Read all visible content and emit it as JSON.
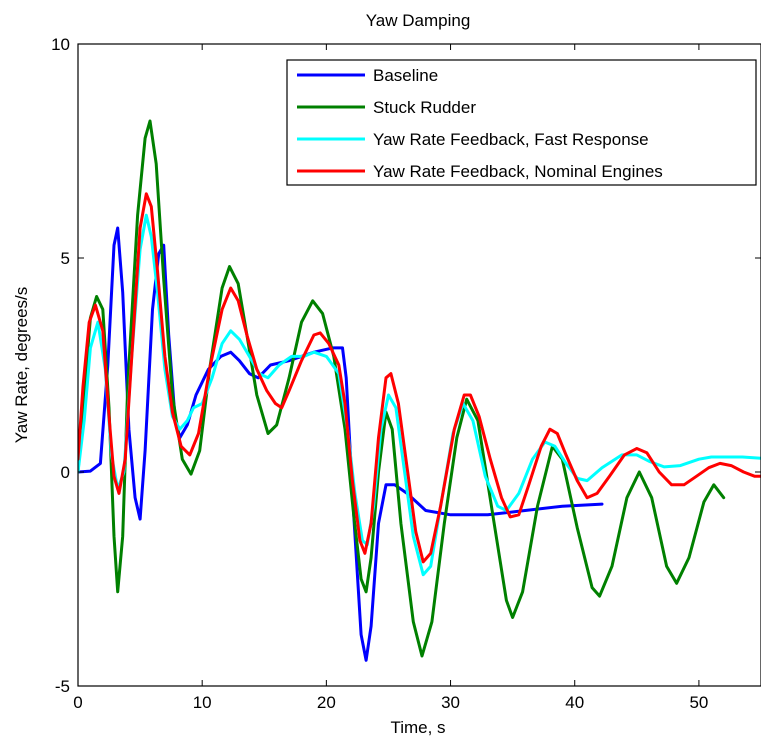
{
  "chart_data": {
    "type": "line",
    "title": "Yaw Damping",
    "xlabel": "Time, s",
    "ylabel": "Yaw Rate, degrees/s",
    "xlim": [
      0,
      55
    ],
    "ylim": [
      -5,
      10
    ],
    "xticks": [
      0,
      10,
      20,
      30,
      40,
      50
    ],
    "yticks": [
      -5,
      0,
      5,
      10
    ],
    "grid": false,
    "legend_position": "top-right",
    "series": [
      {
        "name": "Baseline",
        "color": "#0000ff",
        "points": [
          [
            0,
            0
          ],
          [
            1,
            0.02
          ],
          [
            1.8,
            0.2
          ],
          [
            2.4,
            2.5
          ],
          [
            2.9,
            5.3
          ],
          [
            3.2,
            5.7
          ],
          [
            3.6,
            4.2
          ],
          [
            4.1,
            1.0
          ],
          [
            4.6,
            -0.6
          ],
          [
            5.0,
            -1.1
          ],
          [
            5.4,
            0.5
          ],
          [
            6.0,
            3.8
          ],
          [
            6.5,
            5.1
          ],
          [
            6.9,
            5.3
          ],
          [
            7.3,
            3.2
          ],
          [
            7.8,
            1.3
          ],
          [
            8.2,
            0.8
          ],
          [
            8.8,
            1.1
          ],
          [
            9.5,
            1.8
          ],
          [
            10.5,
            2.4
          ],
          [
            11.5,
            2.7
          ],
          [
            12.3,
            2.8
          ],
          [
            13.0,
            2.6
          ],
          [
            13.8,
            2.3
          ],
          [
            14.5,
            2.2
          ],
          [
            15.5,
            2.5
          ],
          [
            17,
            2.6
          ],
          [
            19,
            2.8
          ],
          [
            20.5,
            2.9
          ],
          [
            21.3,
            2.9
          ],
          [
            21.6,
            2.2
          ],
          [
            22.2,
            -1.0
          ],
          [
            22.8,
            -3.8
          ],
          [
            23.2,
            -4.4
          ],
          [
            23.6,
            -3.6
          ],
          [
            24.2,
            -1.2
          ],
          [
            24.8,
            -0.3
          ],
          [
            25.5,
            -0.3
          ],
          [
            26.5,
            -0.5
          ],
          [
            28,
            -0.9
          ],
          [
            30,
            -1.0
          ],
          [
            33,
            -1.0
          ],
          [
            36,
            -0.9
          ],
          [
            39,
            -0.8
          ],
          [
            42.2,
            -0.75
          ]
        ]
      },
      {
        "name": "Stuck Rudder",
        "color": "#008000",
        "points": [
          [
            0,
            0
          ],
          [
            0.4,
            1.5
          ],
          [
            1.0,
            3.6
          ],
          [
            1.5,
            4.1
          ],
          [
            2.0,
            3.8
          ],
          [
            2.5,
            1.5
          ],
          [
            2.9,
            -1.5
          ],
          [
            3.2,
            -2.8
          ],
          [
            3.6,
            -1.5
          ],
          [
            4.0,
            2.0
          ],
          [
            4.8,
            6.0
          ],
          [
            5.4,
            7.8
          ],
          [
            5.8,
            8.2
          ],
          [
            6.3,
            7.2
          ],
          [
            6.9,
            4.5
          ],
          [
            7.6,
            1.8
          ],
          [
            8.4,
            0.3
          ],
          [
            9.1,
            -0.05
          ],
          [
            9.8,
            0.5
          ],
          [
            10.6,
            2.4
          ],
          [
            11.6,
            4.3
          ],
          [
            12.2,
            4.8
          ],
          [
            12.9,
            4.4
          ],
          [
            13.6,
            3.2
          ],
          [
            14.4,
            1.8
          ],
          [
            15.3,
            0.9
          ],
          [
            16.0,
            1.1
          ],
          [
            17.0,
            2.2
          ],
          [
            18.0,
            3.5
          ],
          [
            18.9,
            4.0
          ],
          [
            19.7,
            3.7
          ],
          [
            20.6,
            2.7
          ],
          [
            21.5,
            1.0
          ],
          [
            22.2,
            -1.0
          ],
          [
            22.8,
            -2.5
          ],
          [
            23.2,
            -2.8
          ],
          [
            23.6,
            -2.0
          ],
          [
            24.2,
            0.0
          ],
          [
            24.8,
            1.4
          ],
          [
            25.3,
            1.0
          ],
          [
            26.0,
            -1.2
          ],
          [
            27.0,
            -3.5
          ],
          [
            27.7,
            -4.3
          ],
          [
            28.5,
            -3.5
          ],
          [
            29.5,
            -1.2
          ],
          [
            30.5,
            0.8
          ],
          [
            31.3,
            1.7
          ],
          [
            32.2,
            1.2
          ],
          [
            33.4,
            -1.0
          ],
          [
            34.5,
            -3.0
          ],
          [
            35.0,
            -3.4
          ],
          [
            35.8,
            -2.8
          ],
          [
            37.0,
            -0.8
          ],
          [
            38.2,
            0.6
          ],
          [
            39.0,
            0.3
          ],
          [
            40.2,
            -1.3
          ],
          [
            41.4,
            -2.7
          ],
          [
            42.0,
            -2.9
          ],
          [
            43.0,
            -2.2
          ],
          [
            44.2,
            -0.6
          ],
          [
            45.2,
            0.0
          ],
          [
            46.2,
            -0.6
          ],
          [
            47.4,
            -2.2
          ],
          [
            48.2,
            -2.6
          ],
          [
            49.2,
            -2.0
          ],
          [
            50.4,
            -0.7
          ],
          [
            51.2,
            -0.3
          ],
          [
            52.0,
            -0.6
          ]
        ]
      },
      {
        "name": "Yaw Rate Feedback, Fast Response",
        "color": "#00ffff",
        "points": [
          [
            0,
            0
          ],
          [
            0.5,
            1.2
          ],
          [
            1.0,
            2.9
          ],
          [
            1.6,
            3.5
          ],
          [
            2.2,
            2.4
          ],
          [
            2.7,
            0.4
          ],
          [
            3.2,
            -0.4
          ],
          [
            3.7,
            0.0
          ],
          [
            4.3,
            2.6
          ],
          [
            5.0,
            5.2
          ],
          [
            5.5,
            6.0
          ],
          [
            5.9,
            5.5
          ],
          [
            6.4,
            4.2
          ],
          [
            7.0,
            2.4
          ],
          [
            7.6,
            1.3
          ],
          [
            8.2,
            1.0
          ],
          [
            8.8,
            1.2
          ],
          [
            9.3,
            1.5
          ],
          [
            10.0,
            1.6
          ],
          [
            10.8,
            2.2
          ],
          [
            11.6,
            3.0
          ],
          [
            12.3,
            3.3
          ],
          [
            13.0,
            3.1
          ],
          [
            13.8,
            2.7
          ],
          [
            14.6,
            2.3
          ],
          [
            15.3,
            2.2
          ],
          [
            16.2,
            2.5
          ],
          [
            17.2,
            2.7
          ],
          [
            18.2,
            2.7
          ],
          [
            19.0,
            2.8
          ],
          [
            20.0,
            2.7
          ],
          [
            21.0,
            2.3
          ],
          [
            21.7,
            1.0
          ],
          [
            22.3,
            -0.5
          ],
          [
            22.9,
            -1.6
          ],
          [
            23.3,
            -1.7
          ],
          [
            23.8,
            -0.8
          ],
          [
            24.4,
            1.0
          ],
          [
            25.0,
            1.8
          ],
          [
            25.6,
            1.5
          ],
          [
            26.3,
            0.0
          ],
          [
            27.0,
            -1.5
          ],
          [
            27.8,
            -2.4
          ],
          [
            28.4,
            -2.2
          ],
          [
            29.2,
            -0.8
          ],
          [
            30.2,
            0.9
          ],
          [
            31.0,
            1.6
          ],
          [
            31.8,
            1.2
          ],
          [
            32.8,
            -0.1
          ],
          [
            33.8,
            -0.8
          ],
          [
            34.5,
            -0.9
          ],
          [
            35.5,
            -0.5
          ],
          [
            36.6,
            0.3
          ],
          [
            37.6,
            0.7
          ],
          [
            38.4,
            0.6
          ],
          [
            39.3,
            0.2
          ],
          [
            40.2,
            -0.15
          ],
          [
            41.0,
            -0.2
          ],
          [
            42.2,
            0.1
          ],
          [
            43.8,
            0.4
          ],
          [
            45.0,
            0.4
          ],
          [
            46.0,
            0.25
          ],
          [
            47.2,
            0.12
          ],
          [
            48.5,
            0.15
          ],
          [
            50.0,
            0.3
          ],
          [
            51.0,
            0.35
          ],
          [
            52.5,
            0.35
          ],
          [
            53.5,
            0.35
          ],
          [
            55.0,
            0.32
          ]
        ]
      },
      {
        "name": "Yaw Rate Feedback, Nominal Engines",
        "color": "#ff0000",
        "points": [
          [
            0,
            0.3
          ],
          [
            0.4,
            2.0
          ],
          [
            0.9,
            3.5
          ],
          [
            1.4,
            3.9
          ],
          [
            2.0,
            3.3
          ],
          [
            2.5,
            1.3
          ],
          [
            2.9,
            -0.1
          ],
          [
            3.3,
            -0.5
          ],
          [
            3.8,
            0.3
          ],
          [
            4.4,
            3.0
          ],
          [
            5.0,
            5.7
          ],
          [
            5.5,
            6.5
          ],
          [
            5.9,
            6.2
          ],
          [
            6.4,
            4.7
          ],
          [
            7.0,
            2.7
          ],
          [
            7.6,
            1.4
          ],
          [
            8.3,
            0.6
          ],
          [
            9.0,
            0.4
          ],
          [
            9.7,
            0.9
          ],
          [
            10.6,
            2.4
          ],
          [
            11.6,
            3.8
          ],
          [
            12.3,
            4.3
          ],
          [
            12.9,
            4.0
          ],
          [
            13.6,
            3.2
          ],
          [
            14.4,
            2.4
          ],
          [
            15.2,
            1.9
          ],
          [
            15.9,
            1.6
          ],
          [
            16.4,
            1.5
          ],
          [
            17.0,
            1.9
          ],
          [
            18.0,
            2.6
          ],
          [
            19.0,
            3.2
          ],
          [
            19.5,
            3.25
          ],
          [
            20.2,
            3.0
          ],
          [
            21.0,
            2.5
          ],
          [
            21.5,
            1.6
          ],
          [
            22.1,
            -0.2
          ],
          [
            22.7,
            -1.6
          ],
          [
            23.1,
            -1.9
          ],
          [
            23.6,
            -1.2
          ],
          [
            24.2,
            0.8
          ],
          [
            24.8,
            2.2
          ],
          [
            25.2,
            2.3
          ],
          [
            25.8,
            1.6
          ],
          [
            26.5,
            0.1
          ],
          [
            27.2,
            -1.4
          ],
          [
            27.8,
            -2.1
          ],
          [
            28.4,
            -1.9
          ],
          [
            29.2,
            -0.8
          ],
          [
            30.3,
            1.0
          ],
          [
            31.1,
            1.8
          ],
          [
            31.6,
            1.8
          ],
          [
            32.3,
            1.3
          ],
          [
            33.2,
            0.3
          ],
          [
            34.1,
            -0.6
          ],
          [
            34.8,
            -1.05
          ],
          [
            35.5,
            -1.0
          ],
          [
            36.3,
            -0.3
          ],
          [
            37.3,
            0.6
          ],
          [
            38.0,
            1.0
          ],
          [
            38.6,
            0.9
          ],
          [
            39.3,
            0.4
          ],
          [
            40.2,
            -0.2
          ],
          [
            41.0,
            -0.6
          ],
          [
            41.8,
            -0.5
          ],
          [
            42.8,
            -0.1
          ],
          [
            44.0,
            0.4
          ],
          [
            45.0,
            0.55
          ],
          [
            45.8,
            0.45
          ],
          [
            46.8,
            0.0
          ],
          [
            47.8,
            -0.3
          ],
          [
            48.8,
            -0.3
          ],
          [
            49.8,
            -0.1
          ],
          [
            50.8,
            0.1
          ],
          [
            51.7,
            0.2
          ],
          [
            52.6,
            0.15
          ],
          [
            53.6,
            0.0
          ],
          [
            54.5,
            -0.1
          ],
          [
            55.0,
            -0.1
          ]
        ]
      }
    ]
  }
}
